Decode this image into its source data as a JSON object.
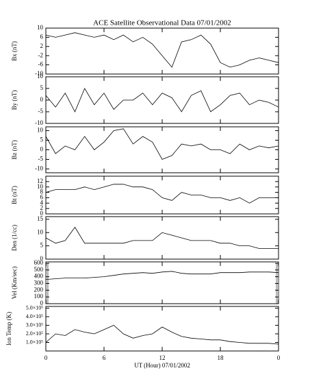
{
  "title": "ACE Satellite Observational Data   07/01/2002",
  "x_axis": {
    "label": "UT (Hour)   07/01/2002",
    "xlim": [
      0,
      24
    ],
    "xticks": [
      0,
      6,
      12,
      18,
      {
        "value": 24,
        "label": "0"
      }
    ],
    "x": [
      0,
      1,
      2,
      3,
      4,
      5,
      6,
      7,
      8,
      9,
      10,
      11,
      12,
      13,
      14,
      15,
      16,
      17,
      18,
      19,
      20,
      21,
      22,
      23,
      24
    ]
  },
  "chart_data": [
    {
      "type": "line",
      "ylabel": "Bx (nT)",
      "ylim": [
        -10,
        10
      ],
      "yticks": [
        -10,
        -6,
        -2,
        2,
        6,
        10
      ],
      "color": "#000",
      "values": [
        7,
        6,
        7,
        8,
        7,
        6,
        7,
        5,
        7,
        4,
        6,
        3,
        -2,
        -7,
        4,
        5,
        7,
        3,
        -5,
        -7,
        -6,
        -4,
        -3,
        -4,
        -5
      ]
    },
    {
      "type": "line",
      "ylabel": "By (nT)",
      "ylim": [
        -10,
        10
      ],
      "yticks": [
        -10,
        -5,
        0,
        5,
        10
      ],
      "color": "#000",
      "values": [
        2,
        -3,
        3,
        -5,
        5,
        -2,
        3,
        -4,
        0,
        0,
        3,
        -2,
        3,
        1,
        -5,
        2,
        4,
        -5,
        -2,
        2,
        3,
        -2,
        0,
        -1,
        -3
      ]
    },
    {
      "type": "line",
      "ylabel": "Bz (nT)",
      "ylim": [
        -12,
        12
      ],
      "yticks": [
        -10,
        -5,
        0,
        5,
        10
      ],
      "color": "#000",
      "values": [
        7,
        -2,
        2,
        0,
        7,
        0,
        4,
        10,
        11,
        3,
        7,
        4,
        -5,
        -3,
        3,
        2,
        3,
        0,
        0,
        -2,
        3,
        0,
        2,
        1,
        2
      ]
    },
    {
      "type": "line",
      "ylabel": "Bt (nT)",
      "ylim": [
        0,
        14
      ],
      "yticks": [
        0,
        2,
        4,
        6,
        8,
        10,
        12
      ],
      "color": "#000",
      "values": [
        8,
        9,
        9,
        9,
        10,
        9,
        10,
        11,
        11,
        10,
        10,
        9,
        6,
        5,
        8,
        7,
        7,
        6,
        6,
        5,
        6,
        4,
        6,
        6,
        6
      ]
    },
    {
      "type": "line",
      "ylabel": "Den (1/cc)",
      "ylim": [
        0,
        16
      ],
      "yticks": [
        0,
        5,
        10,
        15
      ],
      "color": "#000",
      "values": [
        8,
        6,
        7,
        12,
        6,
        6,
        6,
        6,
        6,
        7,
        7,
        7,
        10,
        9,
        8,
        7,
        7,
        7,
        6,
        6,
        5,
        5,
        4,
        4,
        4
      ]
    },
    {
      "type": "line",
      "ylabel": "Vel (Km/sec)",
      "ylim": [
        0,
        620
      ],
      "yticks": [
        0,
        100,
        200,
        300,
        400,
        500,
        600
      ],
      "color": "#000",
      "values": [
        360,
        370,
        380,
        380,
        380,
        390,
        400,
        420,
        440,
        450,
        460,
        450,
        470,
        480,
        450,
        440,
        440,
        440,
        460,
        460,
        460,
        470,
        470,
        470,
        460
      ]
    },
    {
      "type": "line",
      "ylabel": "Ion Temp (K)",
      "ylim": [
        0,
        520000
      ],
      "yticks": [
        {
          "value": 100000,
          "label": "1.0×10⁵"
        },
        {
          "value": 200000,
          "label": "2.0×10⁵"
        },
        {
          "value": 300000,
          "label": "3.0×10⁵"
        },
        {
          "value": 400000,
          "label": "4.0×10⁵"
        },
        {
          "value": 500000,
          "label": "5.0×10⁵"
        }
      ],
      "color": "#000",
      "values": [
        100000,
        200000,
        180000,
        250000,
        220000,
        200000,
        250000,
        300000,
        200000,
        150000,
        180000,
        200000,
        280000,
        220000,
        170000,
        150000,
        140000,
        130000,
        130000,
        110000,
        100000,
        90000,
        90000,
        90000,
        80000
      ]
    }
  ]
}
